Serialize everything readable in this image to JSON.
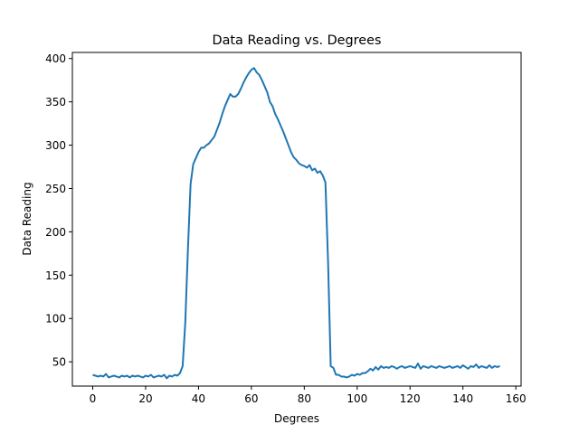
{
  "chart_data": {
    "type": "line",
    "title": "Data Reading vs. Degrees",
    "xlabel": "Degrees",
    "ylabel": "Data Reading",
    "xlim": [
      -7.7,
      162.0
    ],
    "ylim": [
      22.0,
      407.0
    ],
    "xticks": [
      0,
      20,
      40,
      60,
      80,
      100,
      120,
      140,
      160
    ],
    "yticks": [
      50,
      100,
      150,
      200,
      250,
      300,
      350,
      400
    ],
    "grid": false,
    "legend": "none",
    "series": [
      {
        "color": "#1f77b4",
        "x": [
          0,
          1,
          2,
          3,
          4,
          5,
          6,
          7,
          8,
          9,
          10,
          11,
          12,
          13,
          14,
          15,
          16,
          17,
          18,
          19,
          20,
          21,
          22,
          23,
          24,
          25,
          26,
          27,
          28,
          29,
          30,
          31,
          32,
          33,
          34,
          35,
          36,
          37,
          38,
          39,
          40,
          41,
          42,
          43,
          44,
          45,
          46,
          47,
          48,
          49,
          50,
          51,
          52,
          53,
          54,
          55,
          56,
          57,
          58,
          59,
          60,
          61,
          62,
          63,
          64,
          65,
          66,
          67,
          68,
          69,
          70,
          71,
          72,
          73,
          74,
          75,
          76,
          77,
          78,
          79,
          80,
          81,
          82,
          83,
          84,
          85,
          86,
          87,
          88,
          89,
          90,
          91,
          92,
          93,
          94,
          95,
          96,
          97,
          98,
          99,
          100,
          101,
          102,
          103,
          104,
          105,
          106,
          107,
          108,
          109,
          110,
          111,
          112,
          113,
          114,
          115,
          116,
          117,
          118,
          119,
          120,
          121,
          122,
          123,
          124,
          125,
          126,
          127,
          128,
          129,
          130,
          131,
          132,
          133,
          134,
          135,
          136,
          137,
          138,
          139,
          140,
          141,
          142,
          143,
          144,
          145,
          146,
          147,
          148,
          149,
          150,
          151,
          152,
          153,
          154
        ],
        "y": [
          35,
          34,
          33,
          34,
          33,
          36,
          32,
          33,
          34,
          33,
          32,
          34,
          33,
          34,
          32,
          34,
          33,
          34,
          33,
          32,
          34,
          33,
          35,
          32,
          33,
          34,
          33,
          35,
          31,
          34,
          33,
          35,
          34,
          37,
          45,
          95,
          180,
          255,
          278,
          285,
          292,
          297,
          297,
          300,
          302,
          306,
          310,
          318,
          326,
          336,
          345,
          352,
          359,
          356,
          356,
          359,
          365,
          372,
          378,
          383,
          387,
          389,
          384,
          381,
          375,
          368,
          361,
          350,
          345,
          336,
          330,
          323,
          316,
          308,
          300,
          292,
          286,
          283,
          279,
          277,
          276,
          274,
          277,
          271,
          273,
          268,
          270,
          265,
          257,
          165,
          45,
          43,
          35,
          35,
          33,
          33,
          32,
          33,
          35,
          34,
          36,
          35,
          37,
          37,
          39,
          42,
          40,
          44,
          41,
          45,
          43,
          44,
          43,
          45,
          44,
          42,
          44,
          45,
          43,
          44,
          45,
          44,
          43,
          48,
          42,
          45,
          44,
          43,
          45,
          44,
          43,
          45,
          44,
          43,
          44,
          45,
          43,
          44,
          45,
          43,
          46,
          44,
          42,
          45,
          44,
          47,
          43,
          45,
          44,
          43,
          46,
          43,
          45,
          44,
          45
        ]
      }
    ]
  }
}
